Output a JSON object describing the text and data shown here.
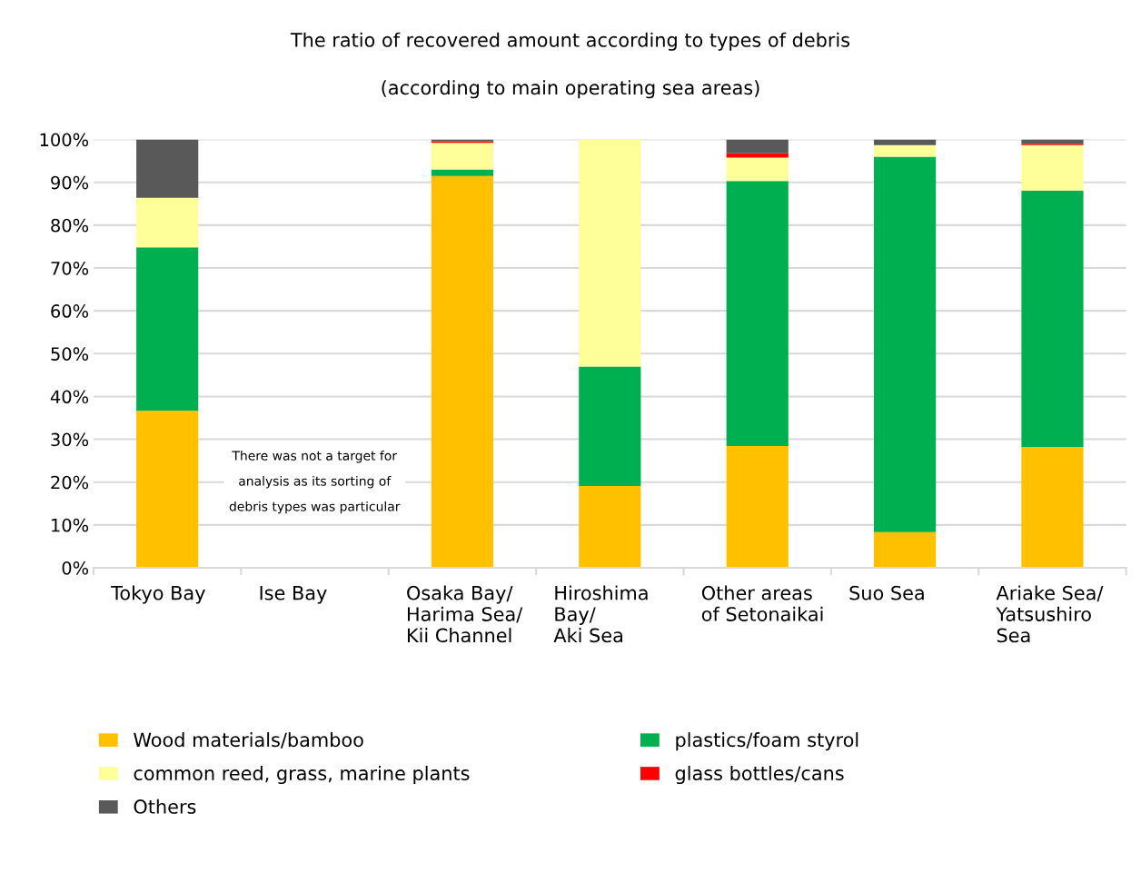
{
  "chart_data": {
    "type": "bar",
    "stacked": true,
    "title": "The ratio of recovered amount according to types of debris",
    "subtitle": "(according to main operating sea areas)",
    "categories": [
      "Tokyo Bay",
      "Ise Bay",
      "Osaka Bay/\nHarima Sea/\nKii Channel",
      "Hiroshima\nBay/\nAki Sea",
      "Other areas\nof Setonaikai",
      "Suo Sea",
      "Ariake Sea/\nYatsushiro\nSea"
    ],
    "series": [
      {
        "name": "Wood materials/bamboo",
        "color": "#ffc000",
        "values": [
          36.7,
          null,
          91.5,
          19.1,
          28.4,
          8.3,
          28.2
        ]
      },
      {
        "name": "plastics/foam styrol",
        "color": "#00b050",
        "values": [
          38.1,
          null,
          1.5,
          27.9,
          61.9,
          87.7,
          59.9
        ]
      },
      {
        "name": "common reed, grass, marine plants",
        "color": "#ffff99",
        "values": [
          11.6,
          null,
          6.2,
          53.0,
          5.5,
          2.7,
          10.6
        ]
      },
      {
        "name": "glass bottles/cans",
        "color": "#ff0000",
        "values": [
          0,
          null,
          0.4,
          0,
          1.0,
          0,
          0.3
        ]
      },
      {
        "name": "Others",
        "color": "#595959",
        "values": [
          13.6,
          null,
          0.4,
          0,
          3.2,
          1.3,
          1.0
        ]
      }
    ],
    "ylim": [
      0,
      100
    ],
    "yticks": [
      {
        "value": 0,
        "label": "0%"
      },
      {
        "value": 10,
        "label": "10%"
      },
      {
        "value": 20,
        "label": "20%"
      },
      {
        "value": 30,
        "label": "30%"
      },
      {
        "value": 40,
        "label": "40%"
      },
      {
        "value": 50,
        "label": "50%"
      },
      {
        "value": 60,
        "label": "60%"
      },
      {
        "value": 70,
        "label": "70%"
      },
      {
        "value": 80,
        "label": "80%"
      },
      {
        "value": 90,
        "label": "90%"
      },
      {
        "value": 100,
        "label": "100%"
      }
    ],
    "grid": "y",
    "legend": "bottom",
    "annotations": [
      "There was not a target for\n\nanalysis as its sorting of\n\ndebris types was particular"
    ]
  }
}
